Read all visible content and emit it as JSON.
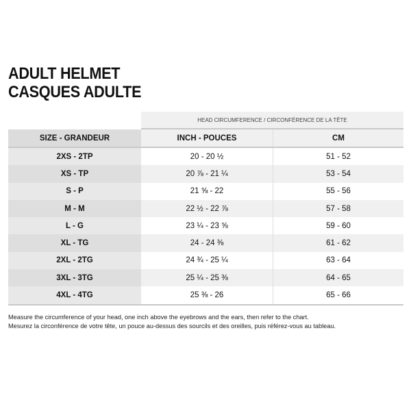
{
  "title": {
    "line1": "ADULT HELMET",
    "line2": "CASQUES ADULTE"
  },
  "table": {
    "super_header": "HEAD CIRCUMFERENCE / CIRCONFÉRENCE DE LA TÊTE",
    "headers": [
      "SIZE - GRANDEUR",
      "INCH - POUCES",
      "CM"
    ],
    "rows": [
      {
        "size": "2XS - 2TP",
        "inch": "20 - 20 ½",
        "cm": "51 - 52"
      },
      {
        "size": "XS - TP",
        "inch": "20 ⅞ - 21 ¼",
        "cm": "53 - 54"
      },
      {
        "size": "S - P",
        "inch": "21 ⅝ - 22",
        "cm": "55 - 56"
      },
      {
        "size": "M - M",
        "inch": "22 ½ - 22 ⅞",
        "cm": "57 - 58"
      },
      {
        "size": "L - G",
        "inch": "23 ¼ - 23 ⅝",
        "cm": "59 - 60"
      },
      {
        "size": "XL - TG",
        "inch": "24 - 24 ⅜",
        "cm": "61 - 62"
      },
      {
        "size": "2XL - 2TG",
        "inch": "24 ¾ - 25 ¼",
        "cm": "63 - 64"
      },
      {
        "size": "3XL - 3TG",
        "inch": "25 ¼ - 25 ⅜",
        "cm": "64 - 65"
      },
      {
        "size": "4XL - 4TG",
        "inch": "25 ⅜ - 26",
        "cm": "65 - 66"
      }
    ]
  },
  "notes": {
    "en": "Measure the circumference of your head, one inch above the eyebrows and the ears, then refer to the chart.",
    "fr": "Mesurez la circonférence de votre tête, un pouce au-dessus des sourcils et des oreilles, puis référez-vous au tableau."
  }
}
